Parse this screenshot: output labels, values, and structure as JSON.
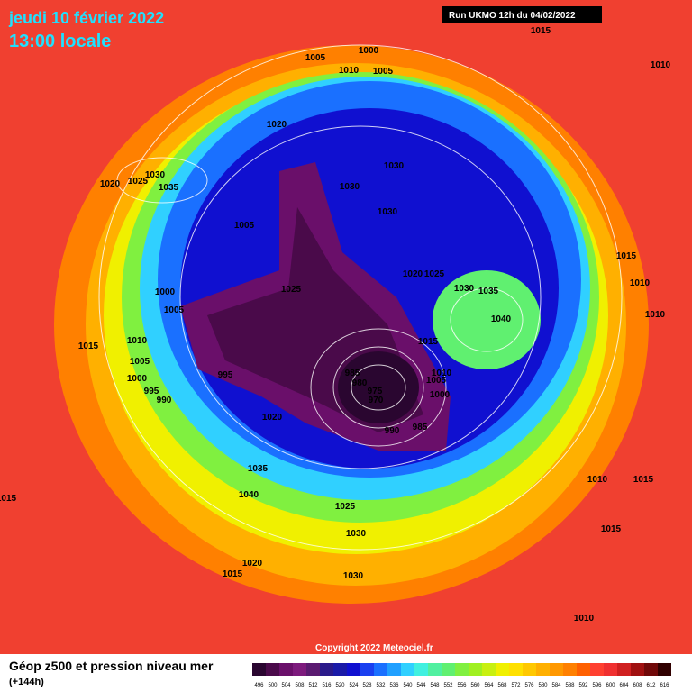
{
  "header": {
    "date": "jeudi 10 février 2022",
    "time": "13:00 locale",
    "run": "Run UKMO 12h du 04/02/2022"
  },
  "copyright": "Copyright 2022 Meteociel.fr",
  "footer": {
    "title": "Géop z500 et pression niveau mer",
    "lead": "(+144h)"
  },
  "colorbar": {
    "ticks": [
      496,
      500,
      504,
      508,
      512,
      516,
      520,
      524,
      528,
      532,
      536,
      540,
      544,
      548,
      552,
      556,
      560,
      564,
      568,
      572,
      576,
      580,
      584,
      588,
      592,
      596,
      600,
      604,
      608,
      612,
      616
    ],
    "colors": [
      "#2a0630",
      "#4a0a4a",
      "#6a0f6a",
      "#7d1a7d",
      "#5a1a70",
      "#2a1a8a",
      "#1a1aa8",
      "#1010d0",
      "#1a40f0",
      "#1a70ff",
      "#20a0ff",
      "#30d0ff",
      "#40f0e0",
      "#50f0a0",
      "#60f070",
      "#80f040",
      "#a0f020",
      "#c8f010",
      "#f0f000",
      "#ffe000",
      "#ffc800",
      "#ffb000",
      "#ff9800",
      "#ff8000",
      "#ff6000",
      "#ff4030",
      "#f03030",
      "#d02020",
      "#a01010",
      "#700808",
      "#300000"
    ]
  },
  "isobars": [
    "1015",
    "1010",
    "1000",
    "1005",
    "1010",
    "1005",
    "1020",
    "1030",
    "1030",
    "1030",
    "1030",
    "1025",
    "1020",
    "1035",
    "1005",
    "1025",
    "1020",
    "1025",
    "1030",
    "1035",
    "1040",
    "1015",
    "1010",
    "1010",
    "1000",
    "1005",
    "1015",
    "1010",
    "1005",
    "1000",
    "995",
    "990",
    "995",
    "985",
    "980",
    "975",
    "970",
    "1015",
    "1010",
    "1005",
    "1000",
    "990",
    "985",
    "1020",
    "1035",
    "1040",
    "1025",
    "1030",
    "1030",
    "1020",
    "1015",
    "1010",
    "1015",
    "1015",
    "1010",
    "1015"
  ]
}
